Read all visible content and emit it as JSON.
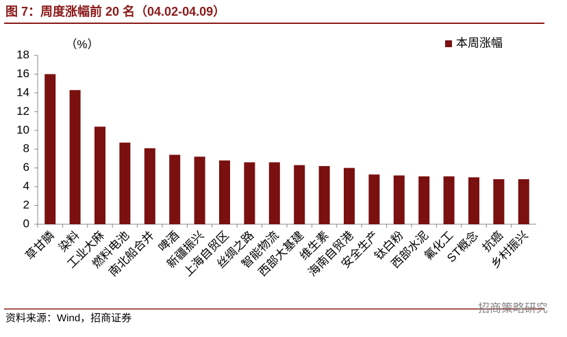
{
  "header": {
    "title": "图 7：周度涨幅前 20 名（04.02-04.09）"
  },
  "chart_data": {
    "type": "bar",
    "unit_label": "（%）",
    "categories": [
      "草甘膦",
      "染料",
      "工业大麻",
      "燃料电池",
      "南北船合并",
      "啤酒",
      "新疆振兴",
      "上海自贸区",
      "丝绸之路",
      "智能物流",
      "西部大基建",
      "维生素",
      "海南自贸港",
      "安全生产",
      "钛白粉",
      "西部水泥",
      "氟化工",
      "ST概念",
      "抗癌",
      "乡村振兴"
    ],
    "series": [
      {
        "name": "本周涨幅",
        "color": "#7a1010",
        "values": [
          16.0,
          14.3,
          10.4,
          8.7,
          8.1,
          7.4,
          7.2,
          6.8,
          6.6,
          6.6,
          6.3,
          6.2,
          6.0,
          5.3,
          5.2,
          5.1,
          5.1,
          5.0,
          4.8,
          4.8
        ]
      }
    ],
    "ylim": [
      0,
      18
    ],
    "yticks": [
      0,
      2,
      4,
      6,
      8,
      10,
      12,
      14,
      16,
      18
    ],
    "legend": "top-right"
  },
  "footer": {
    "source": "资料来源：Wind，招商证券",
    "watermark": "招商策略研究"
  }
}
